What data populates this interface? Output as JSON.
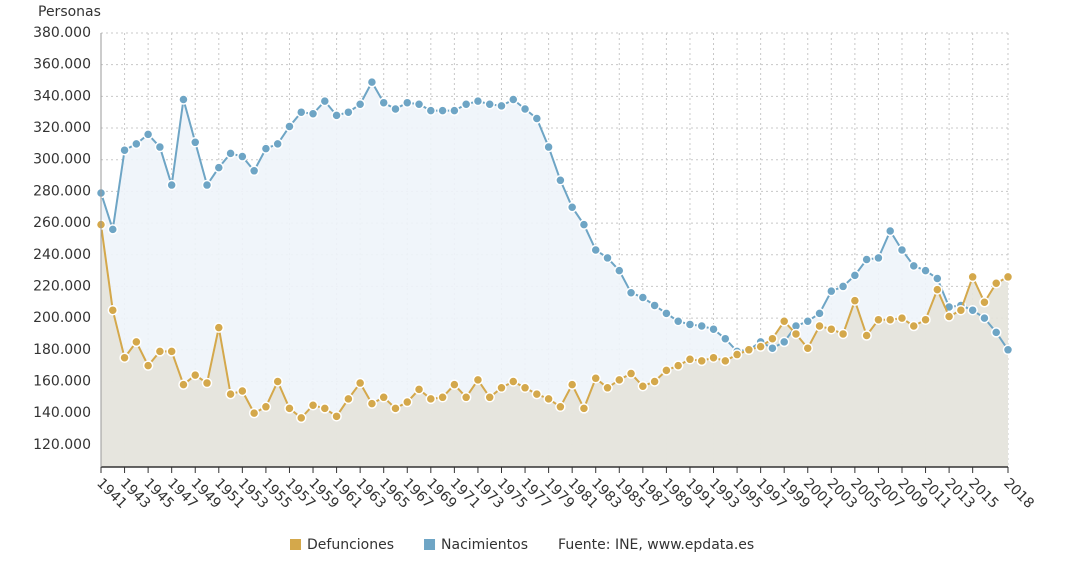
{
  "chart_data": {
    "type": "line",
    "y_label": "Personas",
    "source": "Fuente: INE, www.epdata.es",
    "x": [
      1941,
      1942,
      1943,
      1944,
      1945,
      1946,
      1947,
      1948,
      1949,
      1950,
      1951,
      1952,
      1953,
      1954,
      1955,
      1956,
      1957,
      1958,
      1959,
      1960,
      1961,
      1962,
      1963,
      1964,
      1965,
      1966,
      1967,
      1968,
      1969,
      1970,
      1971,
      1972,
      1973,
      1974,
      1975,
      1976,
      1977,
      1978,
      1979,
      1980,
      1981,
      1982,
      1983,
      1984,
      1985,
      1986,
      1987,
      1988,
      1989,
      1990,
      1991,
      1992,
      1993,
      1994,
      1995,
      1996,
      1997,
      1998,
      1999,
      2000,
      2001,
      2002,
      2003,
      2004,
      2005,
      2006,
      2007,
      2008,
      2009,
      2010,
      2011,
      2012,
      2013,
      2014,
      2015,
      2016,
      2017,
      2018
    ],
    "xlim": [
      1941,
      2018
    ],
    "xticks": [
      1941,
      1943,
      1945,
      1947,
      1949,
      1951,
      1953,
      1955,
      1957,
      1959,
      1961,
      1963,
      1965,
      1967,
      1969,
      1971,
      1973,
      1975,
      1977,
      1979,
      1981,
      1983,
      1985,
      1987,
      1989,
      1991,
      1993,
      1995,
      1997,
      1999,
      2001,
      2003,
      2005,
      2007,
      2009,
      2011,
      2013,
      2015,
      2018
    ],
    "ylim": [
      106000,
      380000
    ],
    "yticks": [
      {
        "value": 120000,
        "label": "120.000"
      },
      {
        "value": 140000,
        "label": "140.000"
      },
      {
        "value": 160000,
        "label": "160.000"
      },
      {
        "value": 180000,
        "label": "180.000"
      },
      {
        "value": 200000,
        "label": "200.000"
      },
      {
        "value": 220000,
        "label": "220.000"
      },
      {
        "value": 240000,
        "label": "240.000"
      },
      {
        "value": 260000,
        "label": "260.000"
      },
      {
        "value": 280000,
        "label": "280.000"
      },
      {
        "value": 300000,
        "label": "300.000"
      },
      {
        "value": 320000,
        "label": "320.000"
      },
      {
        "value": 340000,
        "label": "340.000"
      },
      {
        "value": 360000,
        "label": "360.000"
      },
      {
        "value": 380000,
        "label": "380.000"
      }
    ],
    "grid": true,
    "legend": "bottom",
    "series": [
      {
        "name": "Defunciones",
        "color": "#d4a84b",
        "area_color": "#e4e3da",
        "values": [
          259000,
          205000,
          175000,
          185000,
          170000,
          179000,
          179000,
          158000,
          164000,
          159000,
          194000,
          152000,
          154000,
          140000,
          144000,
          160000,
          143000,
          137000,
          145000,
          143000,
          138000,
          149000,
          159000,
          146000,
          150000,
          143000,
          147000,
          155000,
          149000,
          150000,
          158000,
          150000,
          161000,
          150000,
          156000,
          160000,
          156000,
          152000,
          149000,
          144000,
          158000,
          143000,
          162000,
          156000,
          161000,
          165000,
          157000,
          160000,
          167000,
          170000,
          174000,
          173000,
          175000,
          173000,
          177000,
          180000,
          182000,
          187000,
          198000,
          190000,
          181000,
          195000,
          193000,
          190000,
          211000,
          189000,
          199000,
          199000,
          200000,
          195000,
          199000,
          218000,
          201000,
          205000,
          226000,
          210000,
          222000,
          226000
        ]
      },
      {
        "name": "Nacimientos",
        "color": "#6ea5c5",
        "area_color": "#eef4f9",
        "values": [
          279000,
          256000,
          306000,
          310000,
          316000,
          308000,
          284000,
          338000,
          311000,
          284000,
          295000,
          304000,
          302000,
          293000,
          307000,
          310000,
          321000,
          330000,
          329000,
          337000,
          328000,
          330000,
          335000,
          349000,
          336000,
          332000,
          336000,
          335000,
          331000,
          331000,
          331000,
          335000,
          337000,
          335000,
          334000,
          338000,
          332000,
          326000,
          308000,
          287000,
          270000,
          259000,
          243000,
          238000,
          230000,
          216000,
          213000,
          208000,
          203000,
          198000,
          196000,
          195000,
          193000,
          187000,
          179000,
          180000,
          185000,
          181000,
          185000,
          195000,
          198000,
          203000,
          217000,
          220000,
          227000,
          237000,
          238000,
          255000,
          243000,
          233000,
          230000,
          225000,
          207000,
          208000,
          205000,
          200000,
          191000,
          180000
        ]
      }
    ]
  }
}
